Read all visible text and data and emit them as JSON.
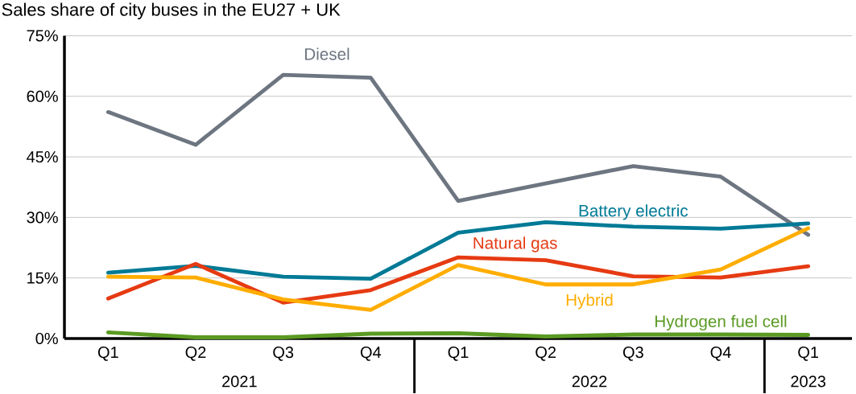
{
  "chart_data": {
    "type": "line",
    "title": "Sales share of city buses in the EU27 + UK",
    "categories": [
      "Q1",
      "Q2",
      "Q3",
      "Q4",
      "Q1",
      "Q2",
      "Q3",
      "Q4",
      "Q1"
    ],
    "series": [
      {
        "name": "Diesel",
        "color": "#6d7581",
        "values": [
          56.1,
          48.0,
          65.3,
          64.6,
          34.1,
          38.4,
          42.7,
          40.1,
          25.7
        ]
      },
      {
        "name": "Battery electric",
        "color": "#007a96",
        "values": [
          16.3,
          18.0,
          15.3,
          14.8,
          26.2,
          28.8,
          27.7,
          27.2,
          28.5
        ]
      },
      {
        "name": "Natural gas",
        "color": "#e63a12",
        "values": [
          9.9,
          18.5,
          8.9,
          12.0,
          20.1,
          19.4,
          15.4,
          15.1,
          17.9
        ]
      },
      {
        "name": "Hybrid",
        "color": "#ffad00",
        "values": [
          15.3,
          15.1,
          9.7,
          7.1,
          18.2,
          13.4,
          13.4,
          17.1,
          27.3
        ]
      },
      {
        "name": "Hydrogen fuel cell",
        "color": "#5a9a22",
        "values": [
          1.5,
          0.3,
          0.3,
          1.2,
          1.3,
          0.5,
          1.0,
          1.0,
          0.9
        ]
      }
    ],
    "ylim": [
      0,
      75
    ],
    "yticks": [
      {
        "value": 0,
        "label": "0%"
      },
      {
        "value": 15,
        "label": "15%"
      },
      {
        "value": 30,
        "label": "30%"
      },
      {
        "value": 45,
        "label": "45%"
      },
      {
        "value": 60,
        "label": "60%"
      },
      {
        "value": 75,
        "label": "75%"
      }
    ],
    "grid": "y",
    "legend": false,
    "marker": "none",
    "line_style": "solid",
    "annotations": [
      "2021",
      "2022",
      "2023"
    ]
  }
}
